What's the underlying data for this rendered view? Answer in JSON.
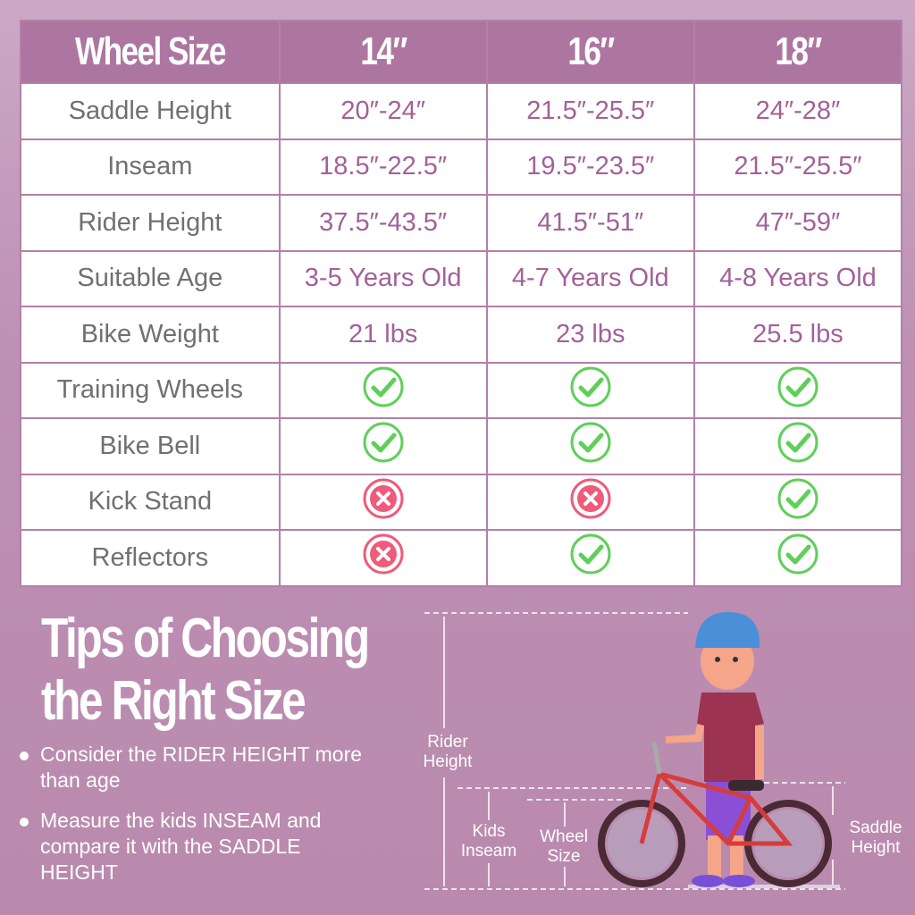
{
  "table": {
    "headers": [
      "Wheel Size",
      "14″",
      "16″",
      "18″"
    ],
    "rows": [
      {
        "label": "Saddle Height",
        "values": [
          "20″-24″",
          "21.5″-25.5″",
          "24″-28″"
        ]
      },
      {
        "label": "Inseam",
        "values": [
          "18.5″-22.5″",
          "19.5″-23.5″",
          "21.5″-25.5″"
        ]
      },
      {
        "label": "Rider Height",
        "values": [
          "37.5″-43.5″",
          "41.5″-51″",
          "47″-59″"
        ]
      },
      {
        "label": "Suitable Age",
        "values": [
          "3-5 Years Old",
          "4-7 Years Old",
          "4-8 Years Old"
        ]
      },
      {
        "label": "Bike Weight",
        "values": [
          "21 lbs",
          "23 lbs",
          "25.5 lbs"
        ]
      },
      {
        "label": "Training Wheels",
        "icons": [
          "check",
          "check",
          "check"
        ]
      },
      {
        "label": "Bike Bell",
        "icons": [
          "check",
          "check",
          "check"
        ]
      },
      {
        "label": "Kick Stand",
        "icons": [
          "cross",
          "cross",
          "check"
        ]
      },
      {
        "label": "Reflectors",
        "icons": [
          "cross",
          "check",
          "check"
        ]
      }
    ],
    "colors": {
      "check": "#5fcf5a",
      "cross": "#ef5b7a",
      "header": "#ad76a0"
    }
  },
  "tips": {
    "title_line1": "Tips of Choosing",
    "title_line2": "the Right Size",
    "bullets": [
      "Consider the RIDER HEIGHT more than age",
      "Measure the kids INSEAM and compare it with the SADDLE HEIGHT"
    ]
  },
  "diagram": {
    "rider_height": "Rider Height",
    "kids_inseam": "Kids Inseam",
    "wheel_size": "Wheel Size",
    "saddle_height": "Saddle Height"
  }
}
